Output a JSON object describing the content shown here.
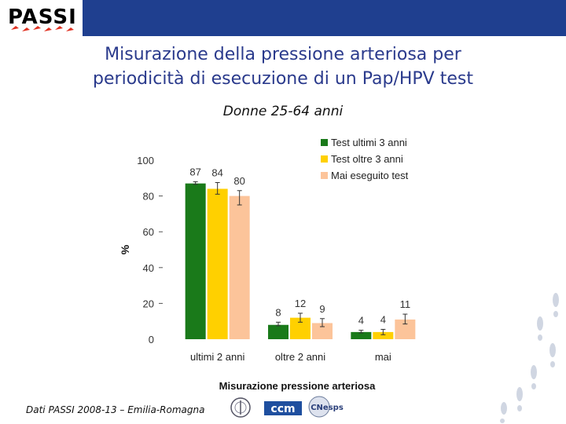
{
  "logo": {
    "text": "PASSI"
  },
  "header": {
    "bar_color": "#1f3f8f"
  },
  "title": {
    "line1": "Misurazione della pressione arteriosa per",
    "line2": "periodicità di esecuzione di un Pap/HPV test"
  },
  "subtitle": "Donne 25-64 anni",
  "footer": {
    "source": "Dati PASSI 2008-13 – Emilia-Romagna"
  },
  "sponsors": {
    "ccm": "ccm",
    "cnesps": "CNesps"
  },
  "chart_data": {
    "type": "bar",
    "categories": [
      "ultimi 2 anni",
      "oltre 2 anni",
      "mai"
    ],
    "series": [
      {
        "name": "Test ultimi 3 anni",
        "color": "#1a7a1a",
        "values": [
          87,
          8,
          4
        ],
        "err": [
          [
            86.5,
            88
          ],
          [
            7.5,
            9.5
          ],
          [
            3.5,
            5
          ]
        ]
      },
      {
        "name": "Test oltre 3 anni",
        "color": "#ffd000",
        "values": [
          84,
          12,
          4
        ],
        "err": [
          [
            81,
            87.5
          ],
          [
            9.5,
            14.5
          ],
          [
            2.5,
            5.5
          ]
        ]
      },
      {
        "name": "Mai eseguito test",
        "color": "#fcc49a",
        "values": [
          80,
          9,
          11
        ],
        "err": [
          [
            75,
            83
          ],
          [
            7,
            11.5
          ],
          [
            8.5,
            14
          ]
        ]
      }
    ],
    "value_labels": [
      [
        "87",
        "84",
        "80"
      ],
      [
        "8",
        "12",
        "9"
      ],
      [
        "4",
        "4",
        "11"
      ]
    ],
    "ylabel": "%",
    "xlabel": "Misurazione pressione arteriosa",
    "ylim": [
      0,
      100
    ],
    "yticks": [
      "0",
      "20",
      "40",
      "60",
      "80",
      "100"
    ],
    "grid": false,
    "legend": "top-right"
  }
}
